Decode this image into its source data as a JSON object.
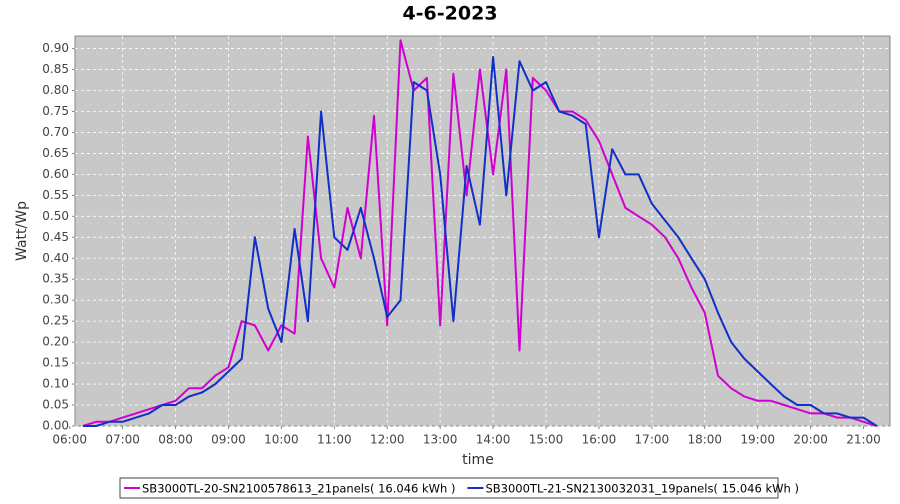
{
  "chart_data": {
    "type": "line",
    "title": "4-6-2023",
    "x_label": "time",
    "y_label": "Watt/Wp",
    "x": [
      6.25,
      6.5,
      6.75,
      7,
      7.25,
      7.5,
      7.75,
      8,
      8.25,
      8.5,
      8.75,
      9,
      9.25,
      9.5,
      9.75,
      10,
      10.25,
      10.5,
      10.75,
      11,
      11.25,
      11.5,
      11.75,
      12,
      12.25,
      12.5,
      12.75,
      13,
      13.25,
      13.5,
      13.75,
      14,
      14.25,
      14.5,
      14.75,
      15,
      15.25,
      15.5,
      15.75,
      16,
      16.25,
      16.5,
      16.75,
      17,
      17.25,
      17.5,
      17.75,
      18,
      18.25,
      18.5,
      18.75,
      19,
      19.25,
      19.5,
      19.75,
      20,
      20.25,
      20.5,
      20.75,
      21,
      21.25
    ],
    "series": [
      {
        "name": "SB3000TL-20-SN2100578613_21panels( 16.046 kWh )",
        "color": "#d000d0",
        "values": [
          0,
          0.01,
          0.01,
          0.02,
          0.03,
          0.04,
          0.05,
          0.06,
          0.09,
          0.09,
          0.12,
          0.14,
          0.25,
          0.24,
          0.18,
          0.24,
          0.22,
          0.69,
          0.4,
          0.33,
          0.52,
          0.4,
          0.74,
          0.24,
          0.92,
          0.8,
          0.83,
          0.24,
          0.84,
          0.55,
          0.85,
          0.6,
          0.85,
          0.18,
          0.83,
          0.8,
          0.75,
          0.75,
          0.73,
          0.68,
          0.6,
          0.52,
          0.5,
          0.48,
          0.45,
          0.4,
          0.33,
          0.27,
          0.12,
          0.09,
          0.07,
          0.06,
          0.06,
          0.05,
          0.04,
          0.03,
          0.03,
          0.02,
          0.02,
          0.01,
          0
        ]
      },
      {
        "name": "SB3000TL-21-SN2130032031_19panels( 15.046 kWh )",
        "color": "#1030c8",
        "values": [
          0,
          0,
          0.01,
          0.01,
          0.02,
          0.03,
          0.05,
          0.05,
          0.07,
          0.08,
          0.1,
          0.13,
          0.16,
          0.45,
          0.28,
          0.2,
          0.47,
          0.25,
          0.75,
          0.45,
          0.42,
          0.52,
          0.4,
          0.26,
          0.3,
          0.82,
          0.8,
          0.6,
          0.25,
          0.62,
          0.48,
          0.88,
          0.55,
          0.87,
          0.8,
          0.82,
          0.75,
          0.74,
          0.72,
          0.45,
          0.66,
          0.6,
          0.6,
          0.53,
          0.49,
          0.45,
          0.4,
          0.35,
          0.27,
          0.2,
          0.16,
          0.13,
          0.1,
          0.07,
          0.05,
          0.05,
          0.03,
          0.03,
          0.02,
          0.02,
          0
        ]
      }
    ],
    "xlim": [
      6.1,
      21.5
    ],
    "xticks": [
      {
        "value": 6,
        "label": "06:00"
      },
      {
        "value": 7,
        "label": "07:00"
      },
      {
        "value": 8,
        "label": "08:00"
      },
      {
        "value": 9,
        "label": "09:00"
      },
      {
        "value": 10,
        "label": "10:00"
      },
      {
        "value": 11,
        "label": "11:00"
      },
      {
        "value": 12,
        "label": "12:00"
      },
      {
        "value": 13,
        "label": "13:00"
      },
      {
        "value": 14,
        "label": "14:00"
      },
      {
        "value": 15,
        "label": "15:00"
      },
      {
        "value": 16,
        "label": "16:00"
      },
      {
        "value": 17,
        "label": "17:00"
      },
      {
        "value": 18,
        "label": "18:00"
      },
      {
        "value": 19,
        "label": "19:00"
      },
      {
        "value": 20,
        "label": "20:00"
      },
      {
        "value": 21,
        "label": "21:00"
      }
    ],
    "ylim": [
      0,
      0.93
    ],
    "yticks": [
      {
        "value": 0,
        "label": "0.00"
      },
      {
        "value": 0.05,
        "label": "0.05"
      },
      {
        "value": 0.1,
        "label": "0.10"
      },
      {
        "value": 0.15,
        "label": "0.15"
      },
      {
        "value": 0.2,
        "label": "0.20"
      },
      {
        "value": 0.25,
        "label": "0.25"
      },
      {
        "value": 0.3,
        "label": "0.30"
      },
      {
        "value": 0.35,
        "label": "0.35"
      },
      {
        "value": 0.4,
        "label": "0.40"
      },
      {
        "value": 0.45,
        "label": "0.45"
      },
      {
        "value": 0.5,
        "label": "0.50"
      },
      {
        "value": 0.55,
        "label": "0.55"
      },
      {
        "value": 0.6,
        "label": "0.60"
      },
      {
        "value": 0.65,
        "label": "0.65"
      },
      {
        "value": 0.7,
        "label": "0.70"
      },
      {
        "value": 0.75,
        "label": "0.75"
      },
      {
        "value": 0.8,
        "label": "0.80"
      },
      {
        "value": 0.85,
        "label": "0.85"
      },
      {
        "value": 0.9,
        "label": "0.90"
      }
    ],
    "grid": true,
    "legend": "bottom"
  }
}
